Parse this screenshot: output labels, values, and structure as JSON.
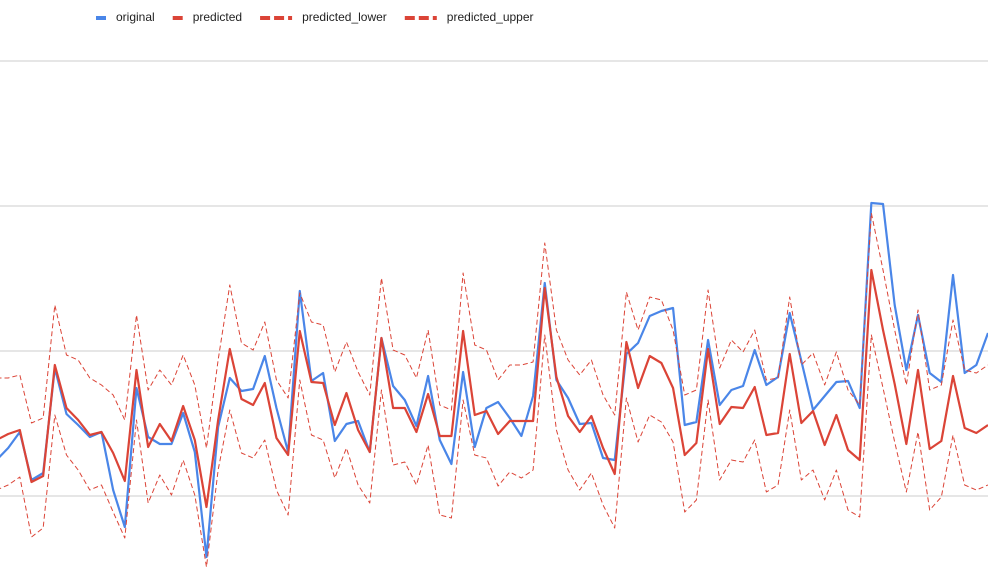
{
  "chart_data": {
    "type": "line",
    "legend": "top",
    "grid": true,
    "gridlines": [
      0,
      145,
      290,
      435
    ],
    "ylim": [
      -90,
      466
    ],
    "xlim": [
      0.3,
      85
    ],
    "x": [
      0,
      1,
      2,
      3,
      4,
      5,
      6,
      7,
      8,
      9,
      10,
      11,
      12,
      13,
      14,
      15,
      16,
      17,
      18,
      19,
      20,
      21,
      22,
      23,
      24,
      25,
      26,
      27,
      28,
      29,
      30,
      31,
      32,
      33,
      34,
      35,
      36,
      37,
      38,
      39,
      40,
      41,
      42,
      43,
      44,
      45,
      46,
      47,
      48,
      49,
      50,
      51,
      52,
      53,
      54,
      55,
      56,
      57,
      58,
      59,
      60,
      61,
      62,
      63,
      64,
      65,
      66,
      67,
      68,
      69,
      70,
      71,
      72,
      73,
      74,
      75,
      76,
      77,
      78,
      79,
      80,
      81,
      82,
      83,
      84,
      85
    ],
    "series": [
      {
        "name": "original",
        "color": "#4a86e8",
        "dashed": false,
        "values": [
          36,
          48,
          64,
          16,
          23,
          128,
          82,
          71,
          59,
          64,
          6,
          -31,
          108,
          59,
          52,
          52,
          83,
          44,
          -61,
          69,
          118,
          105,
          107,
          140,
          88,
          44,
          205,
          115,
          123,
          55,
          72,
          75,
          44,
          158,
          110,
          96,
          70,
          120,
          56,
          32,
          124,
          49,
          88,
          94,
          78,
          60,
          100,
          213,
          116,
          98,
          72,
          73,
          38,
          36,
          142,
          153,
          180,
          185,
          188,
          71,
          74,
          156,
          91,
          106,
          110,
          146,
          111,
          119,
          183,
          135,
          86,
          100,
          114,
          115,
          88,
          293,
          292,
          191,
          126,
          181,
          123,
          114,
          221,
          123,
          131,
          163
        ]
      },
      {
        "name": "predicted",
        "color": "#db4437",
        "dashed": false,
        "values": [
          56,
          62,
          66,
          14,
          20,
          131,
          88,
          76,
          61,
          64,
          43,
          15,
          126,
          49,
          72,
          55,
          90,
          56,
          -11,
          76,
          147,
          97,
          91,
          113,
          58,
          41,
          165,
          114,
          113,
          71,
          103,
          66,
          44,
          158,
          88,
          88,
          64,
          102,
          60,
          60,
          165,
          81,
          85,
          62,
          75,
          75,
          75,
          208,
          119,
          80,
          64,
          80,
          48,
          22,
          154,
          108,
          140,
          133,
          108,
          41,
          53,
          147,
          72,
          89,
          88,
          109,
          61,
          63,
          142,
          73,
          85,
          51,
          81,
          46,
          36,
          226,
          166,
          112,
          52,
          126,
          47,
          55,
          120,
          68,
          63,
          71
        ]
      },
      {
        "name": "predicted_lower",
        "color": "#db4437",
        "dashed": true,
        "values": [
          6,
          11,
          19,
          -41,
          -32,
          81,
          41,
          26,
          6,
          11,
          -16,
          -42,
          76,
          -7,
          21,
          1,
          36,
          1,
          -71,
          26,
          86,
          43,
          38,
          56,
          6,
          -19,
          116,
          61,
          56,
          18,
          48,
          11,
          -7,
          106,
          31,
          34,
          11,
          51,
          -19,
          -22,
          96,
          41,
          38,
          10,
          24,
          18,
          26,
          161,
          66,
          26,
          6,
          23,
          -9,
          -32,
          98,
          54,
          81,
          74,
          54,
          -16,
          -4,
          96,
          16,
          36,
          34,
          56,
          4,
          11,
          86,
          16,
          26,
          -4,
          26,
          -14,
          -21,
          161,
          108,
          54,
          4,
          64,
          -14,
          -1,
          61,
          11,
          6,
          11
        ]
      },
      {
        "name": "predicted_upper",
        "color": "#db4437",
        "dashed": true,
        "values": [
          118,
          118,
          121,
          73,
          78,
          191,
          141,
          136,
          118,
          111,
          101,
          76,
          181,
          106,
          126,
          111,
          141,
          111,
          48,
          136,
          211,
          153,
          146,
          174,
          116,
          98,
          203,
          174,
          171,
          124,
          154,
          124,
          101,
          218,
          146,
          141,
          118,
          166,
          91,
          86,
          223,
          151,
          146,
          116,
          131,
          131,
          134,
          253,
          166,
          136,
          121,
          136,
          101,
          81,
          204,
          166,
          199,
          196,
          166,
          101,
          106,
          206,
          128,
          156,
          144,
          166,
          116,
          118,
          199,
          131,
          143,
          111,
          144,
          106,
          91,
          283,
          226,
          166,
          111,
          186,
          106,
          111,
          176,
          126,
          123,
          131
        ]
      }
    ]
  }
}
